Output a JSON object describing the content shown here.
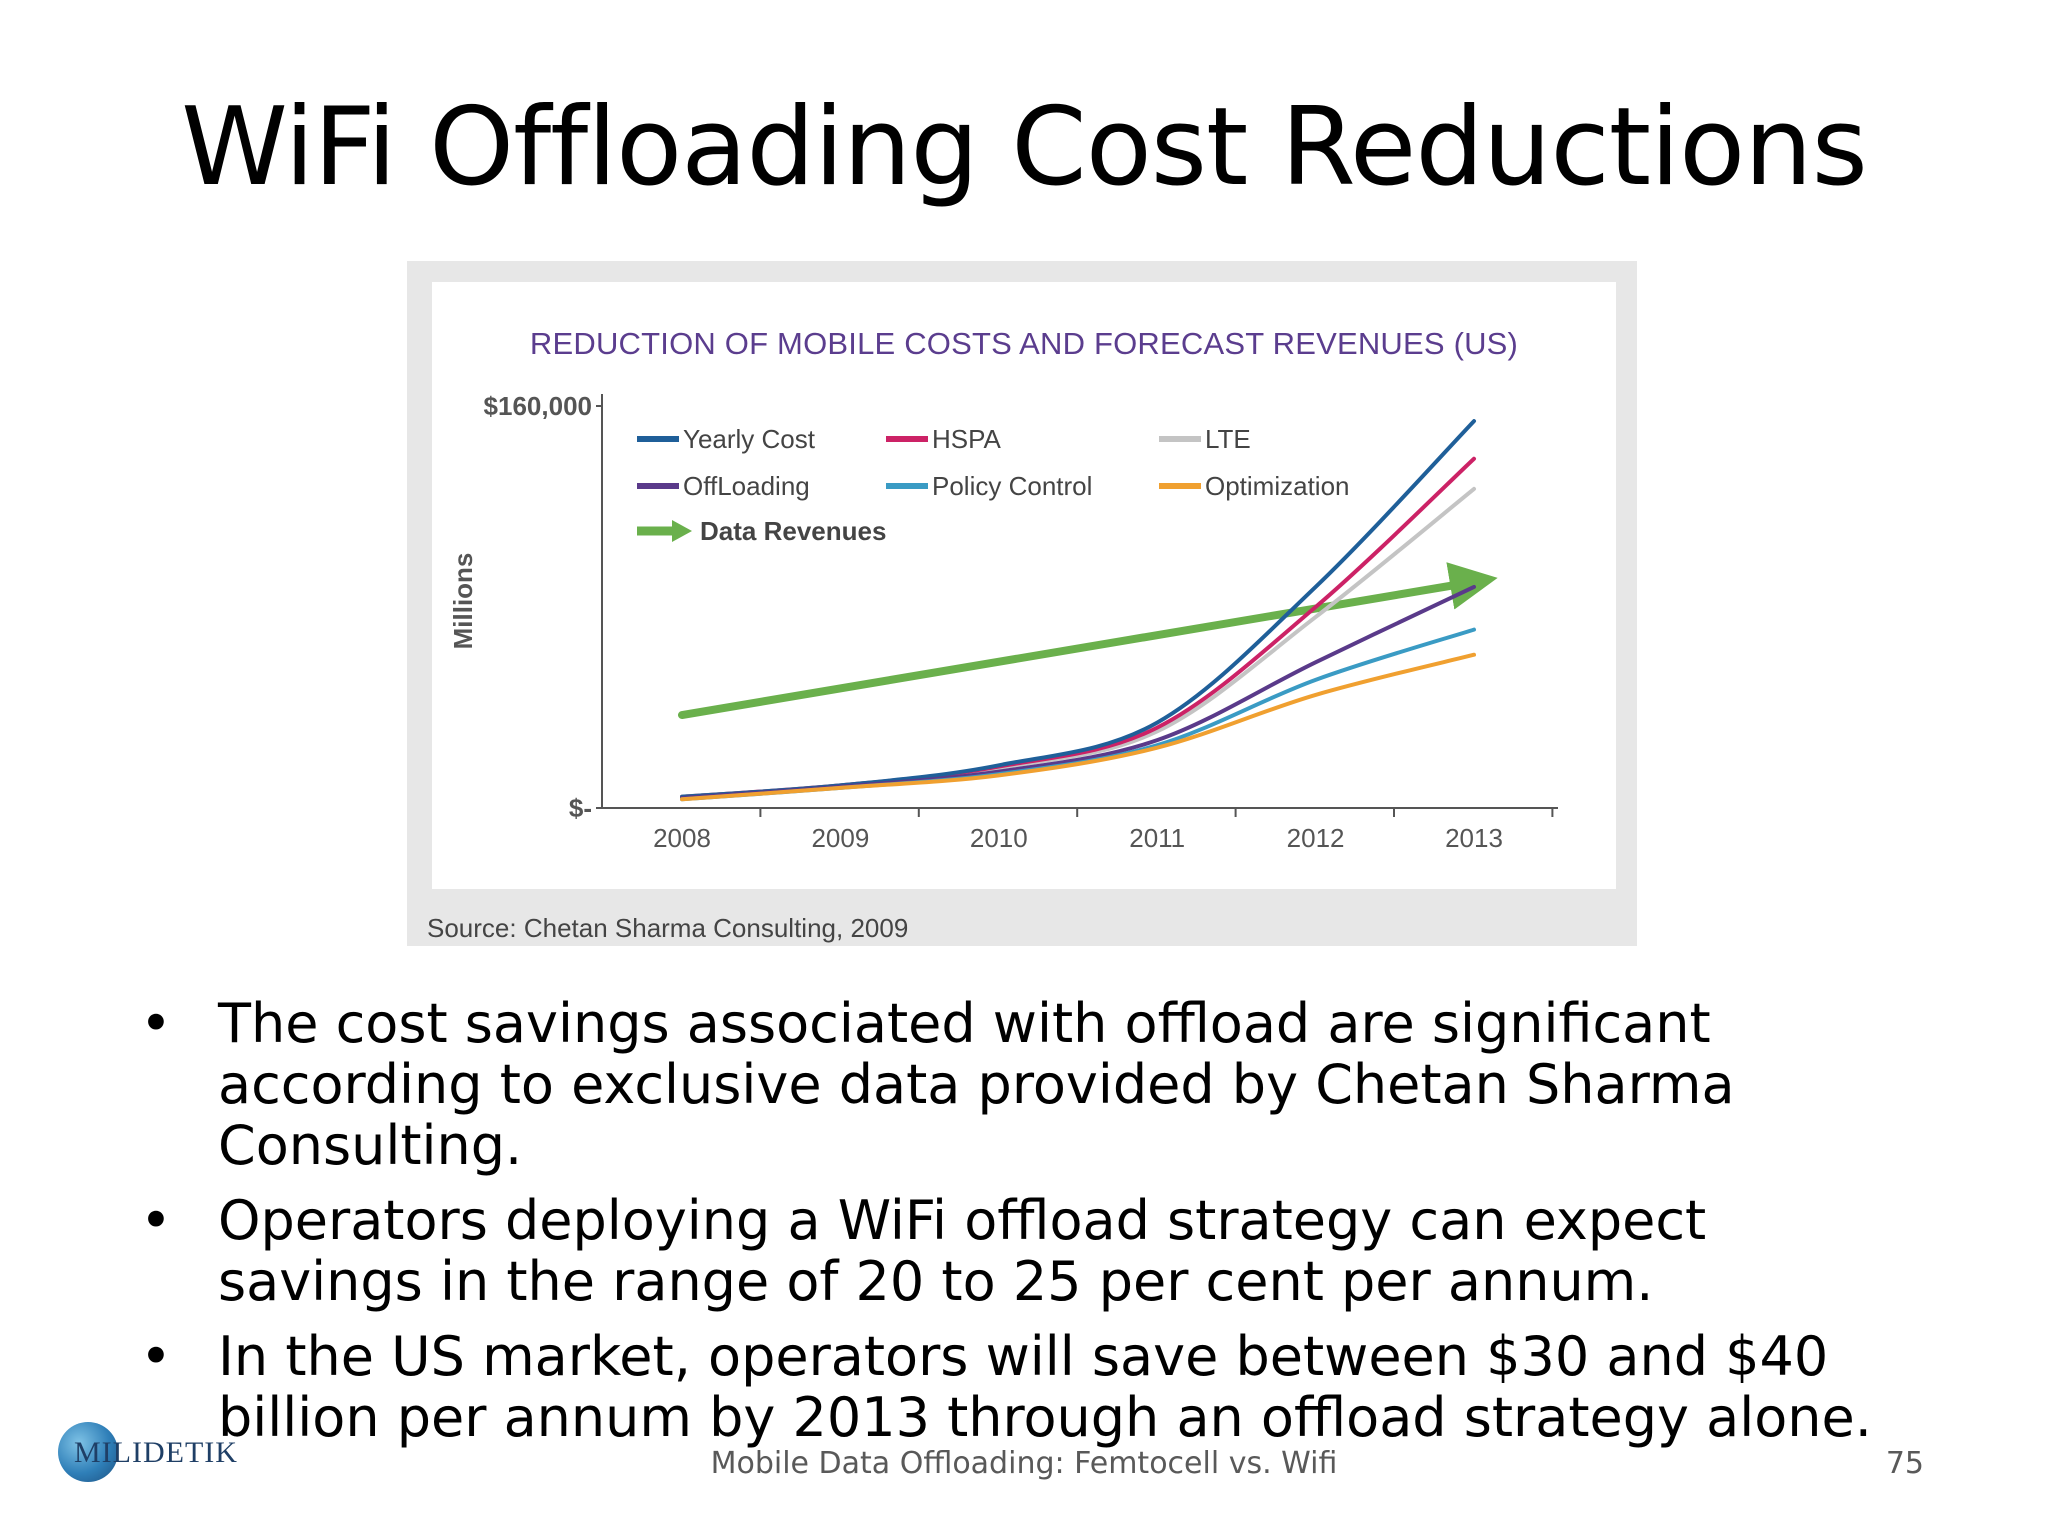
{
  "slide": {
    "title": "WiFi Offloading Cost Reductions",
    "bullets": [
      "The cost savings associated with offload are significant according to exclusive data provided by Chetan Sharma Consulting.",
      "Operators deploying a WiFi offload strategy can expect savings in the range of 20 to 25 per cent per annum.",
      "In the US market, operators will save between $30 and $40 billion per annum by 2013 through an offload strategy alone."
    ],
    "bullet_symbol": "•",
    "footer": "Mobile Data Offloading: Femtocell vs. Wifi",
    "page_number": "75",
    "logo_text": "MILIDETIK"
  },
  "chart_data": {
    "type": "line",
    "title": "REDUCTION OF MOBILE COSTS AND FORECAST REVENUES (US)",
    "ylabel": "Millions",
    "y_tick_labels": [
      "$160,000",
      "$-"
    ],
    "ylim": [
      0,
      160000
    ],
    "x": [
      "2008",
      "2009",
      "2010",
      "2011",
      "2012",
      "2013"
    ],
    "source": "Source: Chetan Sharma Consulting, 2009",
    "legend_placement": "top-left",
    "grid": false,
    "series": [
      {
        "name": "Yearly Cost",
        "color": "#1f5f99",
        "values": [
          4500,
          9000,
          17000,
          34000,
          88000,
          154000
        ]
      },
      {
        "name": "HSPA",
        "color": "#cc2266",
        "values": [
          4500,
          9000,
          16500,
          32000,
          80000,
          139000
        ]
      },
      {
        "name": "LTE",
        "color": "#c4c4c4",
        "values": [
          4500,
          9000,
          16000,
          30500,
          76000,
          127000
        ]
      },
      {
        "name": "OffLoading",
        "color": "#5a3a8a",
        "values": [
          4000,
          8500,
          14500,
          27000,
          58000,
          88000
        ]
      },
      {
        "name": "Policy Control",
        "color": "#3a9bc4",
        "values": [
          3500,
          8000,
          13500,
          25000,
          51000,
          71000
        ]
      },
      {
        "name": "Optimization",
        "color": "#f0a030",
        "values": [
          3500,
          8000,
          13000,
          24000,
          45000,
          61000
        ]
      },
      {
        "name": "Data Revenues",
        "color": "#6ab04c",
        "values": [
          37000,
          50000,
          62000,
          73000,
          83000,
          90000
        ],
        "arrow": true
      }
    ]
  }
}
